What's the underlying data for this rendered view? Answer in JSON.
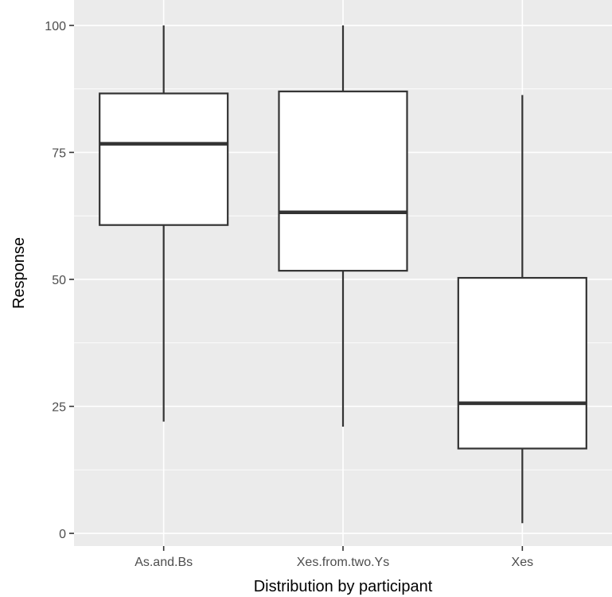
{
  "chart_data": {
    "type": "boxplot",
    "title": "",
    "xlabel": "Distribution by participant",
    "ylabel": "Response",
    "ylim": [
      -2.5,
      105
    ],
    "yticks": [
      0,
      25,
      50,
      75,
      100
    ],
    "categories": [
      "As.and.Bs",
      "Xes.from.two.Ys",
      "Xes"
    ],
    "boxes": [
      {
        "category": "As.and.Bs",
        "whisker_low": 22,
        "q1": 60.7,
        "median": 76.7,
        "q3": 86.6,
        "whisker_high": 100
      },
      {
        "category": "Xes.from.two.Ys",
        "whisker_low": 21,
        "q1": 51.7,
        "median": 63.2,
        "q3": 87,
        "whisker_high": 100
      },
      {
        "category": "Xes",
        "whisker_low": 2,
        "q1": 16.7,
        "median": 25.6,
        "q3": 50.3,
        "whisker_high": 86.3
      }
    ],
    "grid": true,
    "legend": "none",
    "colors": {
      "panel_background": "#ebebeb",
      "grid_major": "#ffffff",
      "box_fill": "#ffffff",
      "box_stroke": "#333333",
      "tick_text": "#4d4d4d"
    }
  }
}
